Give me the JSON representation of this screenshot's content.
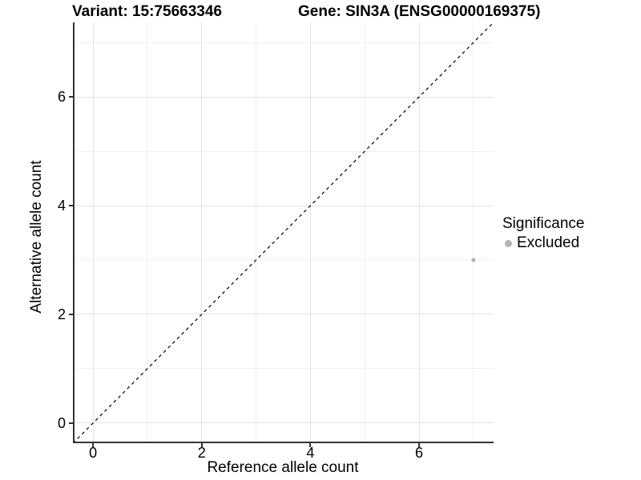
{
  "header": {
    "variant_title": "Variant: 15:75663346",
    "gene_title": "Gene: SIN3A (ENSG00000169375)"
  },
  "chart_data": {
    "type": "scatter",
    "titles": {
      "variant": "Variant: 15:75663346",
      "gene": "Gene: SIN3A (ENSG00000169375)"
    },
    "xlabel": "Reference allele count",
    "ylabel": "Alternative allele count",
    "xlim": [
      -0.37,
      7.37
    ],
    "ylim": [
      -0.37,
      7.37
    ],
    "x_tick_values": [
      0,
      2,
      4,
      6
    ],
    "x_tick_labels": [
      "0",
      "2",
      "4",
      "6"
    ],
    "y_tick_values": [
      0,
      2,
      4,
      6
    ],
    "y_tick_labels": [
      "0",
      "2",
      "4",
      "6"
    ],
    "x_minor_gridlines": [
      1,
      3,
      5,
      7
    ],
    "y_minor_gridlines": [
      1,
      3,
      5,
      7
    ],
    "grid": true,
    "identity_line": {
      "style": "dashed",
      "from": [
        -0.37,
        -0.37
      ],
      "to": [
        7.37,
        7.37
      ],
      "color": "#000000",
      "dash": "4 4",
      "stroke_width": 1.2
    },
    "series": [
      {
        "name": "Excluded",
        "color": "#b3b3b3",
        "point_radius": 2.6,
        "points": [
          [
            7,
            3
          ]
        ]
      }
    ],
    "legend": {
      "title": "Significance",
      "position": "right",
      "entries": [
        {
          "label": "Excluded",
          "color": "#b3b3b3"
        }
      ]
    }
  },
  "colors": {
    "background": "#ffffff",
    "axis_line": "#333333",
    "grid_major": "#e3e3e3",
    "grid_minor": "#f0f0f0",
    "point": "#b3b3b3",
    "text": "#000000"
  }
}
